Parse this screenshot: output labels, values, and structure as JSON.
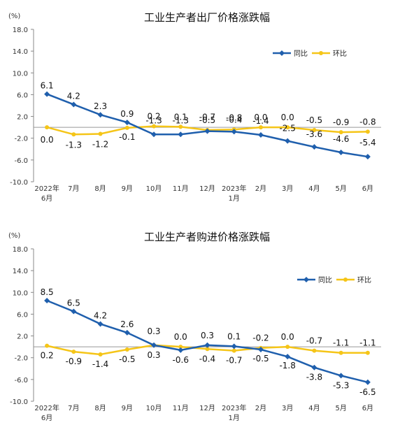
{
  "chart_data": [
    {
      "type": "line",
      "title": "工业生产者出厂价格涨跌幅",
      "unit": "(%)",
      "categories": [
        [
          "2022年",
          "6月"
        ],
        [
          "7月"
        ],
        [
          "8月"
        ],
        [
          "9月"
        ],
        [
          "10月"
        ],
        [
          "11月"
        ],
        [
          "12月"
        ],
        [
          "2023年",
          "1月"
        ],
        [
          "2月"
        ],
        [
          "3月"
        ],
        [
          "4月"
        ],
        [
          "5月"
        ],
        [
          "6月"
        ]
      ],
      "series": [
        {
          "name": "同比",
          "color": "#1f5fad",
          "marker": "diamond",
          "values": [
            6.1,
            4.2,
            2.3,
            0.9,
            -1.3,
            -1.3,
            -0.7,
            -0.8,
            -1.4,
            -2.5,
            -3.6,
            -4.6,
            -5.4
          ]
        },
        {
          "name": "环比",
          "color": "#f5c518",
          "marker": "circle",
          "values": [
            0.0,
            -1.3,
            -1.2,
            -0.1,
            0.2,
            0.1,
            -0.5,
            -0.4,
            0.0,
            0.0,
            -0.5,
            -0.9,
            -0.8
          ]
        }
      ],
      "yticks": [
        "18.0",
        "14.0",
        "10.0",
        "6.0",
        "2.0",
        "-2.0",
        "-6.0",
        "-10.0"
      ],
      "ylim": [
        -10,
        18
      ],
      "legend": "top-right"
    },
    {
      "type": "line",
      "title": "工业生产者购进价格涨跌幅",
      "unit": "(%)",
      "categories": [
        [
          "2022年",
          "6月"
        ],
        [
          "7月"
        ],
        [
          "8月"
        ],
        [
          "9月"
        ],
        [
          "10月"
        ],
        [
          "11月"
        ],
        [
          "12月"
        ],
        [
          "2023年",
          "1月"
        ],
        [
          "2月"
        ],
        [
          "3月"
        ],
        [
          "4月"
        ],
        [
          "5月"
        ],
        [
          "6月"
        ]
      ],
      "series": [
        {
          "name": "同比",
          "color": "#1f5fad",
          "marker": "diamond",
          "values": [
            8.5,
            6.5,
            4.2,
            2.6,
            0.3,
            -0.6,
            0.3,
            0.1,
            -0.5,
            -1.8,
            -3.8,
            -5.3,
            -6.5
          ]
        },
        {
          "name": "环比",
          "color": "#f5c518",
          "marker": "circle",
          "values": [
            0.2,
            -0.9,
            -1.4,
            -0.5,
            0.3,
            0.0,
            -0.4,
            -0.7,
            -0.2,
            0.0,
            -0.7,
            -1.1,
            -1.1
          ]
        }
      ],
      "yticks": [
        "18.0",
        "14.0",
        "10.0",
        "6.0",
        "2.0",
        "-2.0",
        "-6.0",
        "-10.0"
      ],
      "ylim": [
        -10,
        18
      ],
      "legend": "top-right"
    }
  ]
}
